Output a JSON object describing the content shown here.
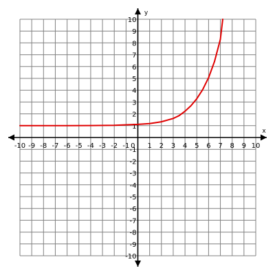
{
  "chart_data": {
    "type": "line",
    "title": "",
    "xlabel": "x",
    "ylabel": "y",
    "xlim": [
      -10,
      10
    ],
    "ylim": [
      -10,
      10
    ],
    "grid": true,
    "x_ticks": [
      "-10",
      "-9",
      "-8",
      "-7",
      "-6",
      "-5",
      "-4",
      "-3",
      "-2",
      "-1",
      "0",
      "1",
      "2",
      "3",
      "4",
      "5",
      "6",
      "7",
      "8",
      "9",
      "10"
    ],
    "y_ticks": [
      "10",
      "9",
      "8",
      "7",
      "6",
      "5",
      "4",
      "3",
      "2",
      "1",
      "-1",
      "-2",
      "-3",
      "-4",
      "-5",
      "-6",
      "-7",
      "-8",
      "-9",
      "-10"
    ],
    "series": [
      {
        "color": "#e00000",
        "points": [
          [
            -10,
            1.0
          ],
          [
            -8,
            1.0
          ],
          [
            -6,
            1.0
          ],
          [
            -4,
            1.01
          ],
          [
            -2,
            1.03
          ],
          [
            0,
            1.11
          ],
          [
            1,
            1.18
          ],
          [
            2,
            1.33
          ],
          [
            3,
            1.61
          ],
          [
            3.5,
            1.85
          ],
          [
            4,
            2.22
          ],
          [
            4.5,
            2.68
          ],
          [
            5,
            3.28
          ],
          [
            5.5,
            4.05
          ],
          [
            6,
            5.06
          ],
          [
            6.5,
            6.42
          ],
          [
            7,
            8.31
          ],
          [
            7.2,
            10.0
          ]
        ]
      }
    ],
    "colors": {
      "grid": "#808080",
      "axis": "#000000"
    }
  }
}
